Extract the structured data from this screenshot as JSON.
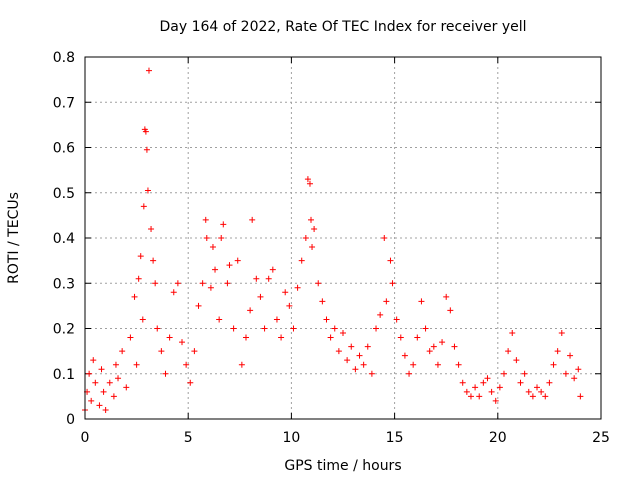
{
  "chart_data": {
    "type": "scatter",
    "title": "Day 164 of 2022, Rate Of TEC Index for receiver yell",
    "xlabel": "GPS time / hours",
    "ylabel": "ROTI / TECUs",
    "xlim": [
      0,
      25
    ],
    "ylim": [
      0,
      0.8
    ],
    "xticks": [
      0,
      5,
      10,
      15,
      20,
      25
    ],
    "xtick_labels": [
      "0",
      "5",
      "10",
      "15",
      "20",
      "25"
    ],
    "yticks": [
      0,
      0.1,
      0.2,
      0.3,
      0.4,
      0.5,
      0.6,
      0.7,
      0.8
    ],
    "ytick_labels": [
      "0",
      "0.1",
      "0.2",
      "0.3",
      "0.4",
      "0.5",
      "0.6",
      "0.7",
      "0.8"
    ],
    "grid": true,
    "marker": "+",
    "marker_color": "#ff0000",
    "series": [
      {
        "name": "ROTI",
        "color": "#ff0000",
        "points": [
          [
            0.0,
            0.02
          ],
          [
            0.1,
            0.06
          ],
          [
            0.2,
            0.1
          ],
          [
            0.3,
            0.04
          ],
          [
            0.4,
            0.13
          ],
          [
            0.5,
            0.08
          ],
          [
            0.7,
            0.03
          ],
          [
            0.8,
            0.11
          ],
          [
            0.9,
            0.06
          ],
          [
            1.0,
            0.02
          ],
          [
            1.2,
            0.08
          ],
          [
            1.4,
            0.05
          ],
          [
            1.5,
            0.12
          ],
          [
            1.6,
            0.09
          ],
          [
            1.8,
            0.15
          ],
          [
            2.0,
            0.07
          ],
          [
            2.2,
            0.18
          ],
          [
            2.4,
            0.27
          ],
          [
            2.5,
            0.12
          ],
          [
            2.6,
            0.31
          ],
          [
            2.7,
            0.36
          ],
          [
            2.8,
            0.22
          ],
          [
            2.85,
            0.47
          ],
          [
            2.9,
            0.64
          ],
          [
            2.95,
            0.635
          ],
          [
            3.0,
            0.595
          ],
          [
            3.05,
            0.505
          ],
          [
            3.1,
            0.77
          ],
          [
            3.2,
            0.42
          ],
          [
            3.3,
            0.35
          ],
          [
            3.4,
            0.3
          ],
          [
            3.5,
            0.2
          ],
          [
            3.7,
            0.15
          ],
          [
            3.9,
            0.1
          ],
          [
            4.1,
            0.18
          ],
          [
            4.3,
            0.28
          ],
          [
            4.5,
            0.3
          ],
          [
            4.7,
            0.17
          ],
          [
            4.9,
            0.12
          ],
          [
            5.1,
            0.08
          ],
          [
            5.3,
            0.15
          ],
          [
            5.5,
            0.25
          ],
          [
            5.7,
            0.3
          ],
          [
            5.85,
            0.44
          ],
          [
            5.9,
            0.4
          ],
          [
            6.1,
            0.29
          ],
          [
            6.2,
            0.38
          ],
          [
            6.3,
            0.33
          ],
          [
            6.5,
            0.22
          ],
          [
            6.6,
            0.4
          ],
          [
            6.7,
            0.43
          ],
          [
            6.9,
            0.3
          ],
          [
            7.0,
            0.34
          ],
          [
            7.2,
            0.2
          ],
          [
            7.4,
            0.35
          ],
          [
            7.6,
            0.12
          ],
          [
            7.8,
            0.18
          ],
          [
            8.0,
            0.24
          ],
          [
            8.1,
            0.44
          ],
          [
            8.3,
            0.31
          ],
          [
            8.5,
            0.27
          ],
          [
            8.7,
            0.2
          ],
          [
            8.9,
            0.31
          ],
          [
            9.1,
            0.33
          ],
          [
            9.3,
            0.22
          ],
          [
            9.5,
            0.18
          ],
          [
            9.7,
            0.28
          ],
          [
            9.9,
            0.25
          ],
          [
            10.1,
            0.2
          ],
          [
            10.3,
            0.29
          ],
          [
            10.5,
            0.35
          ],
          [
            10.7,
            0.4
          ],
          [
            10.8,
            0.53
          ],
          [
            10.9,
            0.52
          ],
          [
            10.95,
            0.44
          ],
          [
            11.0,
            0.38
          ],
          [
            11.1,
            0.42
          ],
          [
            11.3,
            0.3
          ],
          [
            11.5,
            0.26
          ],
          [
            11.7,
            0.22
          ],
          [
            11.9,
            0.18
          ],
          [
            12.1,
            0.2
          ],
          [
            12.3,
            0.15
          ],
          [
            12.5,
            0.19
          ],
          [
            12.7,
            0.13
          ],
          [
            12.9,
            0.16
          ],
          [
            13.1,
            0.11
          ],
          [
            13.3,
            0.14
          ],
          [
            13.5,
            0.12
          ],
          [
            13.7,
            0.16
          ],
          [
            13.9,
            0.1
          ],
          [
            14.1,
            0.2
          ],
          [
            14.3,
            0.23
          ],
          [
            14.5,
            0.4
          ],
          [
            14.6,
            0.26
          ],
          [
            14.8,
            0.35
          ],
          [
            14.9,
            0.3
          ],
          [
            15.1,
            0.22
          ],
          [
            15.3,
            0.18
          ],
          [
            15.5,
            0.14
          ],
          [
            15.7,
            0.1
          ],
          [
            15.9,
            0.12
          ],
          [
            16.1,
            0.18
          ],
          [
            16.3,
            0.26
          ],
          [
            16.5,
            0.2
          ],
          [
            16.7,
            0.15
          ],
          [
            16.9,
            0.16
          ],
          [
            17.1,
            0.12
          ],
          [
            17.3,
            0.17
          ],
          [
            17.5,
            0.27
          ],
          [
            17.7,
            0.24
          ],
          [
            17.9,
            0.16
          ],
          [
            18.1,
            0.12
          ],
          [
            18.3,
            0.08
          ],
          [
            18.5,
            0.06
          ],
          [
            18.7,
            0.05
          ],
          [
            18.9,
            0.07
          ],
          [
            19.1,
            0.05
          ],
          [
            19.3,
            0.08
          ],
          [
            19.5,
            0.09
          ],
          [
            19.7,
            0.06
          ],
          [
            19.9,
            0.04
          ],
          [
            20.1,
            0.07
          ],
          [
            20.3,
            0.1
          ],
          [
            20.5,
            0.15
          ],
          [
            20.7,
            0.19
          ],
          [
            20.9,
            0.13
          ],
          [
            21.1,
            0.08
          ],
          [
            21.3,
            0.1
          ],
          [
            21.5,
            0.06
          ],
          [
            21.7,
            0.05
          ],
          [
            21.9,
            0.07
          ],
          [
            22.1,
            0.06
          ],
          [
            22.3,
            0.05
          ],
          [
            22.5,
            0.08
          ],
          [
            22.7,
            0.12
          ],
          [
            22.9,
            0.15
          ],
          [
            23.1,
            0.19
          ],
          [
            23.3,
            0.1
          ],
          [
            23.5,
            0.14
          ],
          [
            23.7,
            0.09
          ],
          [
            23.9,
            0.11
          ],
          [
            24.0,
            0.05
          ]
        ]
      }
    ]
  }
}
